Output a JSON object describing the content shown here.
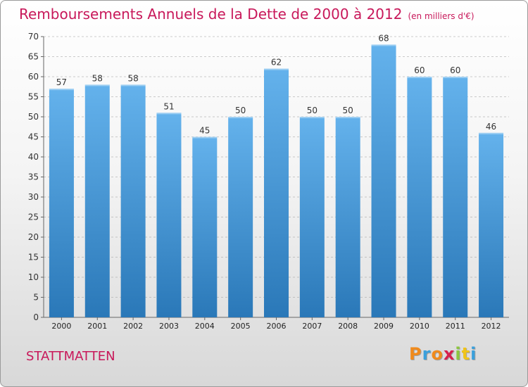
{
  "header": {
    "title": "Remboursements Annuels de la Dette de 2000 à 2012",
    "unit": "(en milliers d'€)"
  },
  "footer": {
    "commune": "STATTMATTEN",
    "logo_text": "Proxiti",
    "logo_colors": [
      "#f08a1c",
      "#3aa0dc",
      "#f08a1c",
      "#d6204e",
      "#8cc63f",
      "#f0c419",
      "#3aa0dc"
    ]
  },
  "colors": {
    "title": "#c8185a",
    "bar_light": "#64b2ec",
    "bar_dark": "#2a78b8",
    "grid": "#9a9a9a"
  },
  "chart_data": {
    "type": "bar",
    "title": "Remboursements Annuels de la Dette de 2000 à 2012",
    "ylim": [
      0,
      70
    ],
    "yticks": [
      0,
      5,
      10,
      15,
      20,
      25,
      30,
      35,
      40,
      45,
      50,
      55,
      60,
      65,
      70
    ],
    "grid": true,
    "categories": [
      "2000",
      "2001",
      "2002",
      "2003",
      "2004",
      "2005",
      "2006",
      "2007",
      "2008",
      "2009",
      "2010",
      "2011",
      "2012"
    ],
    "values": [
      57,
      58,
      58,
      51,
      45,
      50,
      62,
      50,
      50,
      68,
      60,
      60,
      46
    ]
  }
}
